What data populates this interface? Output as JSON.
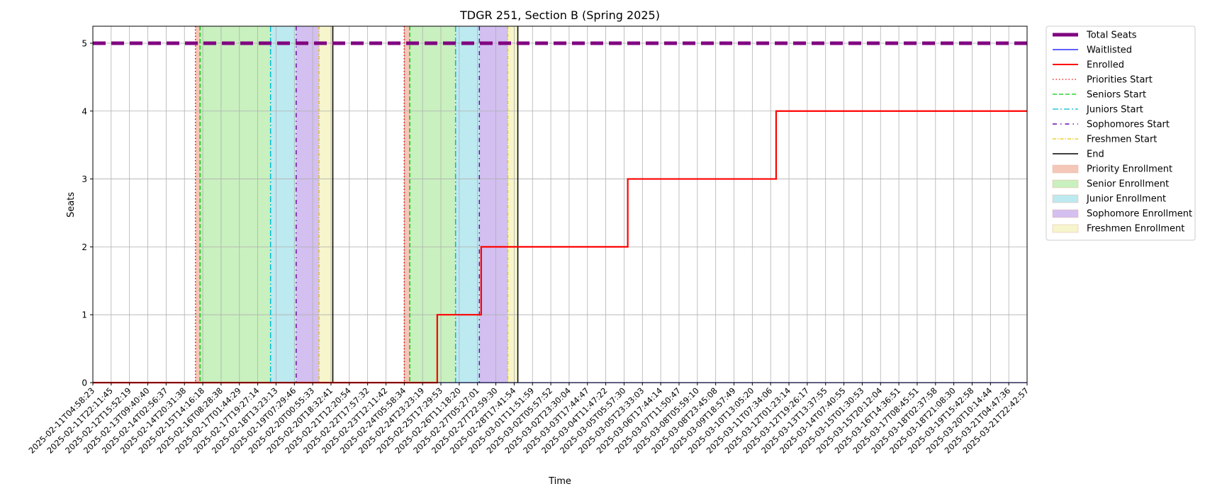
{
  "chart_data": {
    "type": "line",
    "title": "TDGR 251, Section B (Spring 2025)",
    "xlabel": "Time",
    "ylabel": "Seats",
    "ylim": [
      0,
      5.25
    ],
    "yticks": [
      0,
      1,
      2,
      3,
      4,
      5
    ],
    "grid": true,
    "legend_position": "outside-upper-right",
    "categories": [
      "2025-02-11T04:58:23",
      "2025-02-11T22:11:45",
      "2025-02-12T15:52:19",
      "2025-02-13T09:40:40",
      "2025-02-14T02:56:37",
      "2025-02-14T20:31:38",
      "2025-02-15T14:16:18",
      "2025-02-16T08:28:38",
      "2025-02-17T01:44:29",
      "2025-02-17T19:27:14",
      "2025-02-18T13:23:13",
      "2025-02-19T07:29:46",
      "2025-02-20T00:55:33",
      "2025-02-20T18:32:41",
      "2025-02-21T12:20:54",
      "2025-02-22T17:57:32",
      "2025-02-23T12:11:42",
      "2025-02-24T05:58:34",
      "2025-02-24T23:23:19",
      "2025-02-25T17:29:53",
      "2025-02-26T11:18:20",
      "2025-02-27T05:27:01",
      "2025-02-27T22:59:30",
      "2025-02-28T17:41:54",
      "2025-03-01T11:51:59",
      "2025-03-02T05:57:52",
      "2025-03-02T23:30:04",
      "2025-03-03T17:44:47",
      "2025-03-04T11:47:22",
      "2025-03-05T05:57:30",
      "2025-03-05T23:33:03",
      "2025-03-06T17:44:14",
      "2025-03-07T11:50:47",
      "2025-03-08T05:59:10",
      "2025-03-08T23:45:08",
      "2025-03-09T18:57:49",
      "2025-03-10T13:05:20",
      "2025-03-11T07:34:06",
      "2025-03-12T01:23:14",
      "2025-03-12T19:26:17",
      "2025-03-13T13:37:55",
      "2025-03-14T07:40:55",
      "2025-03-15T01:30:53",
      "2025-03-15T20:12:04",
      "2025-03-16T14:36:51",
      "2025-03-17T08:45:51",
      "2025-03-18T02:37:58",
      "2025-03-18T21:08:30",
      "2025-03-19T15:42:58",
      "2025-03-20T10:14:44",
      "2025-03-21T04:47:36",
      "2025-03-21T22:42:57"
    ],
    "series": [
      {
        "name": "Total Seats",
        "color": "#800080",
        "style": "dashed-thick",
        "values": [
          [
            0,
            5
          ],
          [
            51,
            5
          ]
        ]
      },
      {
        "name": "Waitlisted",
        "color": "#0000ff",
        "style": "solid-thin",
        "values": [
          [
            0,
            0
          ],
          [
            51,
            0
          ]
        ]
      },
      {
        "name": "Enrolled",
        "color": "#ff0000",
        "style": "step",
        "values": [
          [
            0,
            0
          ],
          [
            18.8,
            0
          ],
          [
            18.8,
            1
          ],
          [
            21.2,
            1
          ],
          [
            21.2,
            2
          ],
          [
            29.2,
            2
          ],
          [
            29.2,
            3
          ],
          [
            37.3,
            3
          ],
          [
            37.3,
            4
          ],
          [
            51,
            4
          ]
        ]
      }
    ],
    "phase_lines": [
      {
        "name": "Priorities Start",
        "color": "#ff0000",
        "dash": "1.5,3",
        "x": [
          5.6,
          17
        ]
      },
      {
        "name": "Seniors Start",
        "color": "#00cc00",
        "dash": "6,3",
        "x": [
          5.85,
          17.3
        ]
      },
      {
        "name": "Juniors Start",
        "color": "#00bcd4",
        "dash": "8,3,2,3",
        "x": [
          9.7,
          19.8
        ]
      },
      {
        "name": "Sophomores Start",
        "color": "#6a0dad",
        "dash": "6,5,1.5,5",
        "x": [
          11.1,
          21.1
        ]
      },
      {
        "name": "Freshmen Start",
        "color": "#e6c800",
        "dash": "5,2,1.5,2",
        "x": [
          12.35,
          22.65
        ]
      },
      {
        "name": "End",
        "color": "#000000",
        "dash": "",
        "x": [
          13.1,
          23.2
        ]
      }
    ],
    "phase_bands": [
      {
        "name": "Priority Enrollment",
        "color": "#f4c7b8",
        "ranges": [
          [
            5.6,
            5.85
          ],
          [
            17,
            17.3
          ]
        ]
      },
      {
        "name": "Senior Enrollment",
        "color": "#c9f0bf",
        "ranges": [
          [
            5.85,
            9.7
          ],
          [
            17.3,
            19.8
          ]
        ]
      },
      {
        "name": "Junior Enrollment",
        "color": "#bde9f0",
        "ranges": [
          [
            9.7,
            11.1
          ],
          [
            19.8,
            21.1
          ]
        ]
      },
      {
        "name": "Sophomore Enrollment",
        "color": "#d3bff0",
        "ranges": [
          [
            11.1,
            12.35
          ],
          [
            21.1,
            22.65
          ]
        ]
      },
      {
        "name": "Freshmen Enrollment",
        "color": "#f6f5cc",
        "ranges": [
          [
            12.35,
            13.1
          ],
          [
            22.65,
            23.2
          ]
        ]
      }
    ],
    "legend": [
      {
        "label": "Total Seats",
        "kind": "line",
        "color": "#800080",
        "dash": "",
        "width": 5
      },
      {
        "label": "Waitlisted",
        "kind": "line",
        "color": "#0000ff",
        "dash": "",
        "width": 1.2
      },
      {
        "label": "Enrolled",
        "kind": "line",
        "color": "#ff0000",
        "dash": "",
        "width": 2
      },
      {
        "label": "Priorities Start",
        "kind": "line",
        "color": "#ff0000",
        "dash": "1.5,3",
        "width": 1.2
      },
      {
        "label": "Seniors Start",
        "kind": "line",
        "color": "#00cc00",
        "dash": "6,3",
        "width": 1.2
      },
      {
        "label": "Juniors Start",
        "kind": "line",
        "color": "#00bcd4",
        "dash": "8,3,2,3",
        "width": 1.2
      },
      {
        "label": "Sophomores Start",
        "kind": "line",
        "color": "#6a0dad",
        "dash": "6,5,1.5,5",
        "width": 1.5
      },
      {
        "label": "Freshmen Start",
        "kind": "line",
        "color": "#e6c800",
        "dash": "5,2,1.5,2",
        "width": 1.2
      },
      {
        "label": "End",
        "kind": "line",
        "color": "#000000",
        "dash": "",
        "width": 1.5
      },
      {
        "label": "Priority Enrollment",
        "kind": "patch",
        "color": "#f4c7b8"
      },
      {
        "label": "Senior Enrollment",
        "kind": "patch",
        "color": "#c9f0bf"
      },
      {
        "label": "Junior Enrollment",
        "kind": "patch",
        "color": "#bde9f0"
      },
      {
        "label": "Sophomore Enrollment",
        "kind": "patch",
        "color": "#d3bff0"
      },
      {
        "label": "Freshmen Enrollment",
        "kind": "patch",
        "color": "#f6f5cc"
      }
    ]
  }
}
